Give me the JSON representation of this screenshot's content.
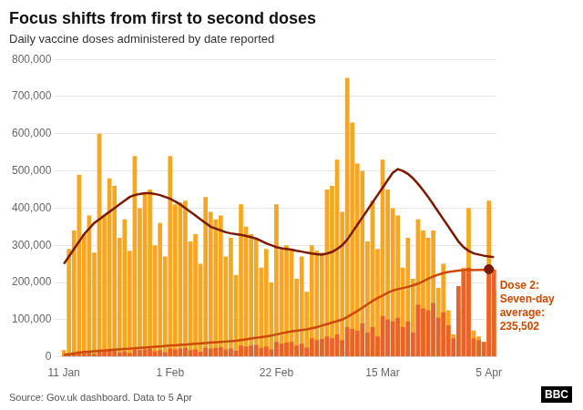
{
  "chart_data": {
    "type": "bar",
    "title": "Focus shifts from first to second doses",
    "subtitle": "Daily vaccine doses administered by date reported",
    "source": "Source: Gov.uk dashboard. Data to 5 Apr",
    "logo": "BBC",
    "categories": [
      "11 Jan",
      null,
      null,
      null,
      null,
      null,
      null,
      null,
      null,
      null,
      null,
      null,
      null,
      null,
      null,
      null,
      null,
      null,
      null,
      null,
      null,
      "1 Feb",
      null,
      null,
      null,
      null,
      null,
      null,
      null,
      null,
      null,
      null,
      null,
      null,
      null,
      null,
      null,
      null,
      null,
      null,
      null,
      null,
      "22 Feb",
      null,
      null,
      null,
      null,
      null,
      null,
      null,
      null,
      null,
      null,
      null,
      null,
      null,
      null,
      null,
      null,
      null,
      null,
      null,
      null,
      "15 Mar",
      null,
      null,
      null,
      null,
      null,
      null,
      null,
      null,
      null,
      null,
      null,
      null,
      null,
      null,
      null,
      null,
      null,
      null,
      null,
      null,
      "5 Apr",
      null
    ],
    "series": [
      {
        "type": "bar",
        "color": "#f5a623",
        "values": [
          18000,
          290000,
          340000,
          490000,
          330000,
          380000,
          280000,
          600000,
          380000,
          480000,
          460000,
          320000,
          370000,
          285000,
          540000,
          400000,
          440000,
          450000,
          300000,
          360000,
          270000,
          540000,
          410000,
          415000,
          420000,
          310000,
          330000,
          250000,
          430000,
          390000,
          370000,
          380000,
          270000,
          320000,
          220000,
          410000,
          350000,
          330000,
          320000,
          240000,
          290000,
          200000,
          410000,
          290000,
          300000,
          290000,
          210000,
          270000,
          175000,
          300000,
          285000,
          280000,
          450000,
          460000,
          530000,
          390000,
          750000,
          630000,
          520000,
          500000,
          310000,
          420000,
          290000,
          530000,
          450000,
          400000,
          380000,
          240000,
          320000,
          210000,
          370000,
          340000,
          320000,
          340000,
          185000,
          250000,
          125000,
          60000,
          130000,
          240000,
          400000,
          70000,
          55000,
          40000,
          420000,
          180000
        ]
      },
      {
        "type": "bar",
        "color": "#e8632a",
        "values": [
          3000,
          8000,
          12000,
          15000,
          10000,
          12000,
          8000,
          18000,
          14000,
          16000,
          18000,
          12000,
          15000,
          10000,
          20000,
          18000,
          20000,
          22000,
          15000,
          18000,
          12000,
          22000,
          20000,
          22000,
          24000,
          18000,
          20000,
          14000,
          25000,
          22000,
          24000,
          26000,
          20000,
          22000,
          16000,
          30000,
          28000,
          30000,
          32000,
          24000,
          28000,
          20000,
          40000,
          35000,
          38000,
          40000,
          30000,
          35000,
          25000,
          50000,
          45000,
          48000,
          55000,
          50000,
          60000,
          45000,
          80000,
          75000,
          70000,
          90000,
          65000,
          80000,
          55000,
          110000,
          100000,
          95000,
          105000,
          80000,
          95000,
          65000,
          140000,
          130000,
          125000,
          145000,
          105000,
          120000,
          85000,
          50000,
          190000,
          230000,
          240000,
          50000,
          45000,
          40000,
          230000,
          235000
        ]
      },
      {
        "type": "line",
        "color": "#7b1a00",
        "values": [
          250000,
          270000,
          290000,
          310000,
          330000,
          345000,
          360000,
          370000,
          380000,
          390000,
          400000,
          410000,
          420000,
          430000,
          435000,
          438000,
          440000,
          440000,
          438000,
          435000,
          430000,
          425000,
          418000,
          410000,
          400000,
          390000,
          380000,
          370000,
          360000,
          350000,
          345000,
          340000,
          335000,
          332000,
          330000,
          328000,
          325000,
          322000,
          318000,
          312000,
          305000,
          300000,
          295000,
          292000,
          290000,
          288000,
          285000,
          283000,
          280000,
          278000,
          276000,
          275000,
          278000,
          282000,
          290000,
          300000,
          315000,
          335000,
          355000,
          375000,
          395000,
          415000,
          435000,
          455000,
          475000,
          495000,
          505000,
          500000,
          492000,
          480000,
          465000,
          448000,
          430000,
          410000,
          390000,
          370000,
          350000,
          330000,
          310000,
          295000,
          285000,
          278000,
          275000,
          272000,
          270000,
          268000
        ]
      },
      {
        "type": "line",
        "color": "#c94a00",
        "values": [
          5000,
          7000,
          9000,
          11000,
          13000,
          14000,
          15000,
          16000,
          17000,
          18000,
          19000,
          20000,
          21000,
          22000,
          23000,
          24000,
          25000,
          26000,
          27000,
          28000,
          29000,
          30000,
          31000,
          32000,
          33000,
          34000,
          35000,
          36000,
          37000,
          38000,
          39000,
          40000,
          41000,
          42000,
          43000,
          45000,
          47000,
          49000,
          51000,
          53000,
          55000,
          57000,
          60000,
          63000,
          66000,
          68000,
          70000,
          72000,
          74000,
          77000,
          80000,
          84000,
          88000,
          92000,
          96000,
          100000,
          107000,
          115000,
          123000,
          132000,
          141000,
          150000,
          158000,
          165000,
          172000,
          178000,
          182000,
          185000,
          188000,
          192000,
          197000,
          203000,
          210000,
          216000,
          221000,
          225000,
          228000,
          230000,
          232000,
          233000,
          234000,
          233000,
          234000,
          234000,
          235000,
          235502
        ]
      }
    ],
    "annotations": [
      {
        "text": "Dose 2:\nSeven-day\naverage:\n235,502",
        "x": "5 Apr",
        "y": 235502,
        "color": "#c94a00",
        "marker_color": "#7b1a00"
      }
    ],
    "ylim": [
      0,
      800000
    ],
    "yticks": [
      0,
      {
        "value": 100000,
        "label": "100,000"
      },
      {
        "value": 200000,
        "label": "200,000"
      },
      {
        "value": 300000,
        "label": "300,000"
      },
      {
        "value": 400000,
        "label": "400,000"
      },
      {
        "value": 500000,
        "label": "500,000"
      },
      {
        "value": 600000,
        "label": "600,000"
      },
      {
        "value": 700000,
        "label": "700,000"
      },
      {
        "value": 800000,
        "label": "800,000"
      }
    ],
    "grid": true
  }
}
